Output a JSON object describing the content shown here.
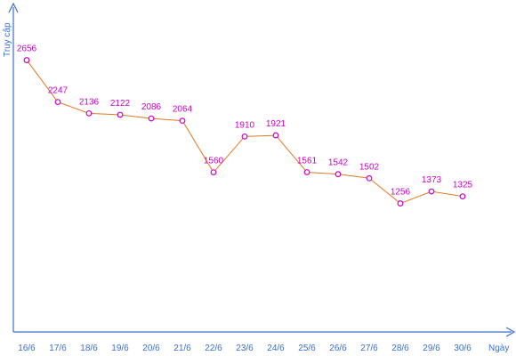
{
  "chart_data": {
    "type": "line",
    "title": "",
    "xlabel": "Ngày",
    "ylabel": "Truy cập",
    "categories": [
      "16/6",
      "17/6",
      "18/6",
      "19/6",
      "20/6",
      "21/6",
      "22/6",
      "23/6",
      "24/6",
      "25/6",
      "26/6",
      "27/6",
      "28/6",
      "29/6",
      "30/6"
    ],
    "series": [
      {
        "values": [
          2656,
          2247,
          2136,
          2122,
          2086,
          2064,
          1560,
          1910,
          1921,
          1561,
          1542,
          1502,
          1256,
          1373,
          1325
        ]
      }
    ],
    "ylim": [
      0,
      3200
    ],
    "grid": false,
    "legend": "none",
    "colors": {
      "axis": "#3a6fd0",
      "line": "#e07a20",
      "marker": "#cc00cc",
      "data_label": "#cc00cc",
      "tick_label": "#3a6fd0"
    }
  }
}
